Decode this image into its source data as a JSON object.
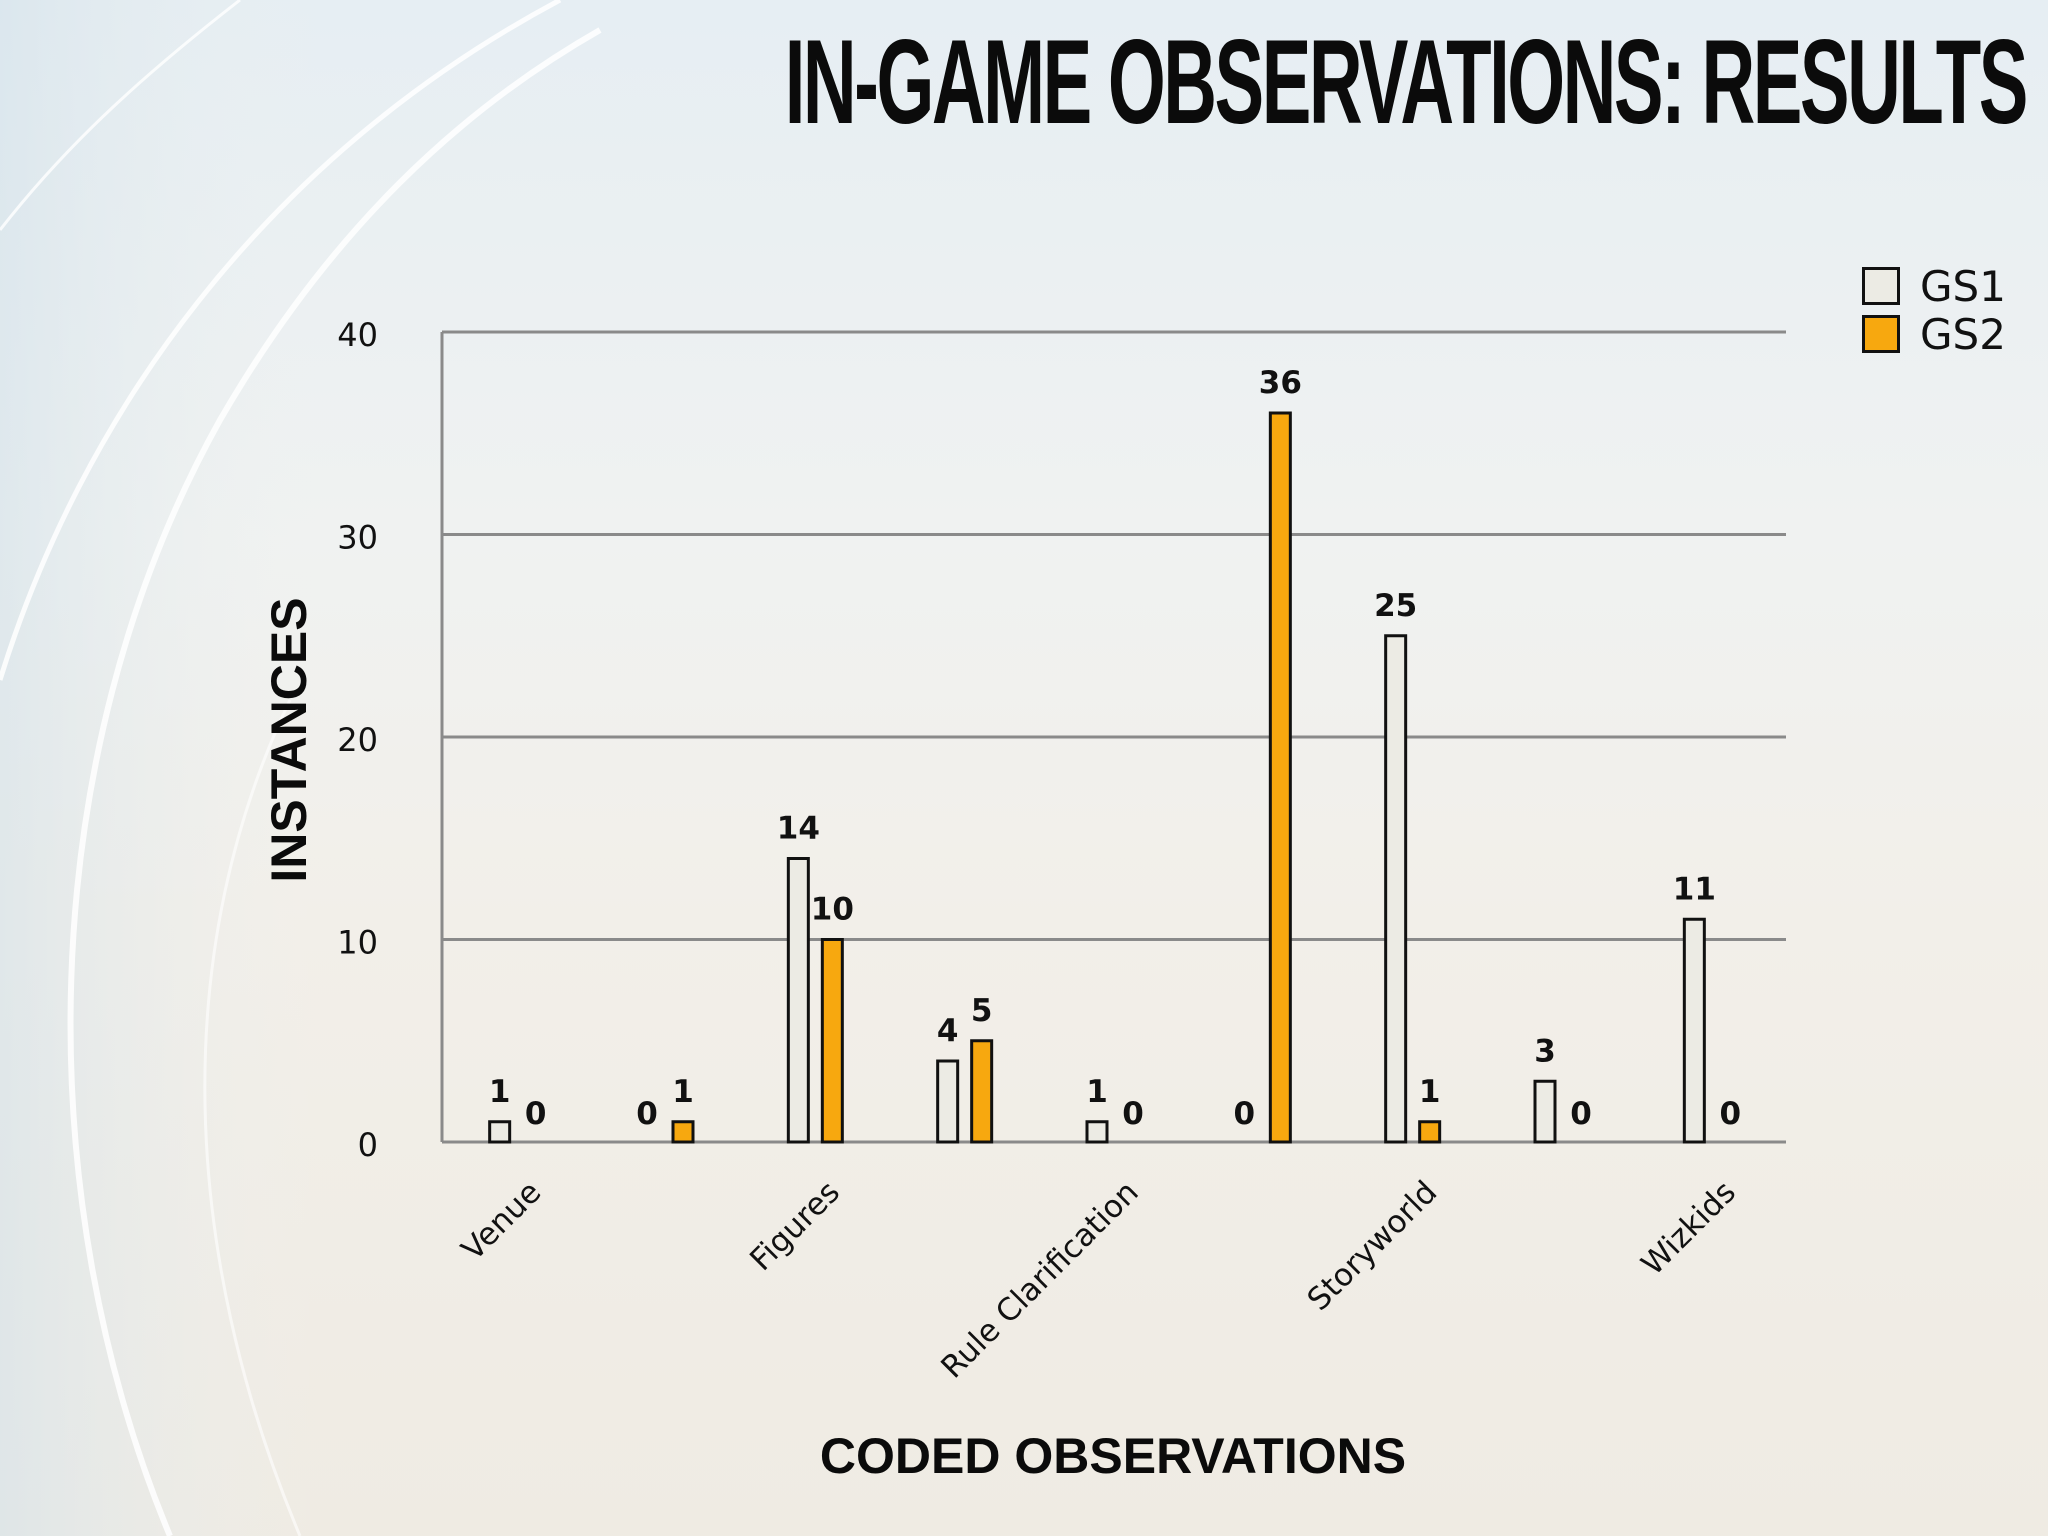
{
  "slide": {
    "title": "IN-GAME OBSERVATIONS: RESULTS"
  },
  "colors": {
    "gs1": "#ecebe4",
    "gs2": "#f7a80f",
    "axis": "#8a8a8a",
    "text": "#111111"
  },
  "chart_data": {
    "type": "bar",
    "title": "",
    "xlabel": "CODED OBSERVATIONS",
    "ylabel": "INSTANCES",
    "ylim": [
      0,
      40
    ],
    "yticks": [
      0,
      10,
      20,
      30,
      40
    ],
    "grid": true,
    "legend_position": "top-right",
    "categories": [
      "Venue",
      "",
      "Figures",
      "",
      "Rule Clarification",
      "",
      "Storyworld",
      "",
      "Wizkids"
    ],
    "series": [
      {
        "name": "GS1",
        "values": [
          1,
          0,
          14,
          4,
          1,
          0,
          25,
          3,
          11
        ]
      },
      {
        "name": "GS2",
        "values": [
          0,
          1,
          10,
          5,
          0,
          36,
          1,
          0,
          0
        ]
      }
    ]
  }
}
